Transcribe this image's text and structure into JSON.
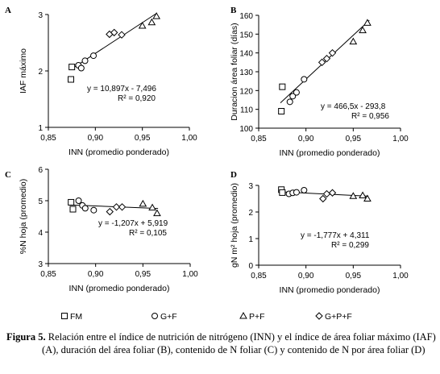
{
  "chart_data": [
    {
      "type": "scatter",
      "panel_letter": "A",
      "xlabel": "INN (promedio ponderado)",
      "ylabel": "IAF máximo",
      "xlim": [
        0.85,
        1.0
      ],
      "ylim": [
        1,
        3
      ],
      "xticks": [
        "0,85",
        "0,90",
        "0,95",
        "1,00"
      ],
      "yticks": [
        "1",
        "2",
        "3"
      ],
      "equation": "y = 10,897x - 7,496",
      "r2": "R² = 0,920",
      "fit": {
        "slope": 10.897,
        "intercept": -7.496,
        "x": [
          0.875,
          0.965
        ]
      },
      "series": [
        {
          "name": "FM",
          "marker": "square",
          "points": [
            [
              0.874,
              1.85
            ],
            [
              0.875,
              2.07
            ]
          ]
        },
        {
          "name": "G+F",
          "marker": "circle",
          "points": [
            [
              0.882,
              2.1
            ],
            [
              0.885,
              2.05
            ],
            [
              0.889,
              2.18
            ],
            [
              0.898,
              2.27
            ]
          ]
        },
        {
          "name": "P+F",
          "marker": "triangle",
          "points": [
            [
              0.95,
              2.8
            ],
            [
              0.96,
              2.86
            ],
            [
              0.965,
              2.97
            ]
          ]
        },
        {
          "name": "G+P+F",
          "marker": "diamond",
          "points": [
            [
              0.915,
              2.65
            ],
            [
              0.92,
              2.68
            ],
            [
              0.928,
              2.64
            ]
          ]
        }
      ]
    },
    {
      "type": "scatter",
      "panel_letter": "B",
      "xlabel": "INN (promedio ponderado)",
      "ylabel": "Duracion área foliar (días)",
      "xlim": [
        0.85,
        1.0
      ],
      "ylim": [
        100,
        160
      ],
      "xticks": [
        "0,85",
        "0,90",
        "0,95",
        "1,00"
      ],
      "yticks": [
        "100",
        "110",
        "120",
        "130",
        "140",
        "150",
        "160"
      ],
      "equation": "y = 466,5x - 293,8",
      "r2": "R² = 0,956",
      "fit": {
        "slope": 466.5,
        "intercept": -293.8,
        "x": [
          0.873,
          0.967
        ]
      },
      "series": [
        {
          "name": "FM",
          "marker": "square",
          "points": [
            [
              0.874,
              109
            ],
            [
              0.875,
              122
            ]
          ]
        },
        {
          "name": "G+F",
          "marker": "circle",
          "points": [
            [
              0.883,
              114
            ],
            [
              0.886,
              117
            ],
            [
              0.89,
              119
            ],
            [
              0.898,
              126
            ]
          ]
        },
        {
          "name": "P+F",
          "marker": "triangle",
          "points": [
            [
              0.95,
              146
            ],
            [
              0.96,
              152
            ],
            [
              0.965,
              156
            ]
          ]
        },
        {
          "name": "G+P+F",
          "marker": "diamond",
          "points": [
            [
              0.917,
              135
            ],
            [
              0.922,
              137
            ],
            [
              0.928,
              140
            ]
          ]
        }
      ]
    },
    {
      "type": "scatter",
      "panel_letter": "C",
      "xlabel": "INN (promedio ponderado)",
      "ylabel": "%N hoja (promedio)",
      "xlim": [
        0.85,
        1.0
      ],
      "ylim": [
        3,
        6
      ],
      "xticks": [
        "0,85",
        "0,90",
        "0,95",
        "1,00"
      ],
      "yticks": [
        "3",
        "4",
        "5",
        "6"
      ],
      "equation": "y = -1,207x + 5,919",
      "r2": "R² = 0,105",
      "fit": {
        "slope": -1.207,
        "intercept": 5.919,
        "x": [
          0.872,
          0.966
        ]
      },
      "series": [
        {
          "name": "FM",
          "marker": "square",
          "points": [
            [
              0.874,
              4.95
            ],
            [
              0.876,
              4.73
            ]
          ]
        },
        {
          "name": "G+F",
          "marker": "circle",
          "points": [
            [
              0.882,
              5.0
            ],
            [
              0.886,
              4.85
            ],
            [
              0.889,
              4.76
            ],
            [
              0.898,
              4.7
            ]
          ]
        },
        {
          "name": "P+F",
          "marker": "triangle",
          "points": [
            [
              0.95,
              4.9
            ],
            [
              0.96,
              4.78
            ],
            [
              0.965,
              4.6
            ]
          ]
        },
        {
          "name": "G+P+F",
          "marker": "diamond",
          "points": [
            [
              0.915,
              4.65
            ],
            [
              0.922,
              4.8
            ],
            [
              0.928,
              4.8
            ]
          ]
        }
      ]
    },
    {
      "type": "scatter",
      "panel_letter": "D",
      "xlabel": "INN (promedio ponderado)",
      "ylabel": "gN m² hoja (promedio)",
      "xlim": [
        0.85,
        1.0
      ],
      "ylim": [
        0,
        3
      ],
      "xticks": [
        "0,85",
        "0,90",
        "0,95",
        "1,00"
      ],
      "yticks": [
        "0",
        "1",
        "2",
        "3"
      ],
      "equation": "y = -1,777x + 4,311",
      "r2": "R² = 0,299",
      "fit": {
        "slope": -1.777,
        "intercept": 4.311,
        "x": [
          0.872,
          0.966
        ]
      },
      "series": [
        {
          "name": "FM",
          "marker": "square",
          "points": [
            [
              0.874,
              2.84
            ],
            [
              0.875,
              2.73
            ]
          ]
        },
        {
          "name": "G+F",
          "marker": "circle",
          "points": [
            [
              0.882,
              2.68
            ],
            [
              0.886,
              2.72
            ],
            [
              0.89,
              2.74
            ],
            [
              0.898,
              2.82
            ]
          ]
        },
        {
          "name": "P+F",
          "marker": "triangle",
          "points": [
            [
              0.95,
              2.6
            ],
            [
              0.96,
              2.62
            ],
            [
              0.965,
              2.5
            ]
          ]
        },
        {
          "name": "G+P+F",
          "marker": "diamond",
          "points": [
            [
              0.918,
              2.5
            ],
            [
              0.922,
              2.68
            ],
            [
              0.928,
              2.72
            ]
          ]
        }
      ]
    }
  ],
  "legend": [
    {
      "marker": "square",
      "label": "FM"
    },
    {
      "marker": "circle",
      "label": "G+F"
    },
    {
      "marker": "triangle",
      "label": "P+F"
    },
    {
      "marker": "diamond",
      "label": "G+P+F"
    }
  ],
  "caption": {
    "label": "Figura 5.",
    "line1": "Relación entre el índice de nutrición de nitrógeno (INN) y el índice de área foliar máximo (IAF)",
    "line2": "(A), duración del área foliar (B), contenido de N foliar (C) y contenido de N por área foliar (D)"
  }
}
